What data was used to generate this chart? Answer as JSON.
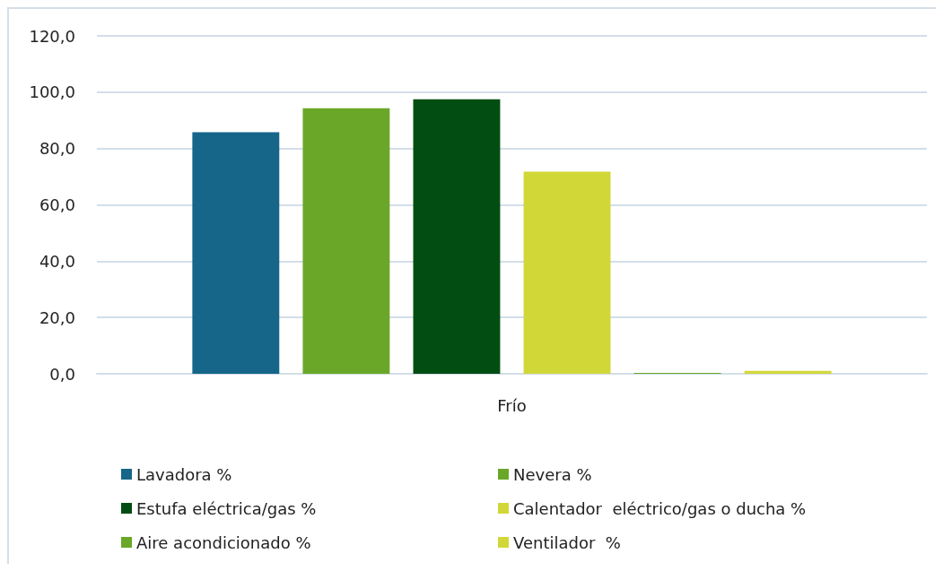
{
  "chart_data": {
    "type": "bar",
    "categories": [
      "Frío"
    ],
    "series": [
      {
        "name": "Lavadora %",
        "color": "#16668a",
        "values": [
          85.8
        ]
      },
      {
        "name": "Nevera %",
        "color": "#6aa729",
        "values": [
          94.3
        ]
      },
      {
        "name": "Estufa eléctrica/gas %",
        "color": "#024e12",
        "values": [
          97.5
        ]
      },
      {
        "name": "Calentador  eléctrico/gas o ducha %",
        "color": "#d2d738",
        "values": [
          71.8
        ]
      },
      {
        "name": "Aire acondicionado %",
        "color": "#6aa729",
        "values": [
          0.3
        ]
      },
      {
        "name": "Ventilador  %",
        "color": "#d2d738",
        "values": [
          1.0
        ]
      }
    ],
    "ylim": [
      0,
      120
    ],
    "yticks": [
      {
        "value": 0,
        "label": "0,0"
      },
      {
        "value": 20,
        "label": "20,0"
      },
      {
        "value": 40,
        "label": "40,0"
      },
      {
        "value": 60,
        "label": "60,0"
      },
      {
        "value": 80,
        "label": "80,0"
      },
      {
        "value": 100,
        "label": "100,0"
      },
      {
        "value": 120,
        "label": "120,0"
      }
    ],
    "grid": "y",
    "legend": "bottom"
  }
}
